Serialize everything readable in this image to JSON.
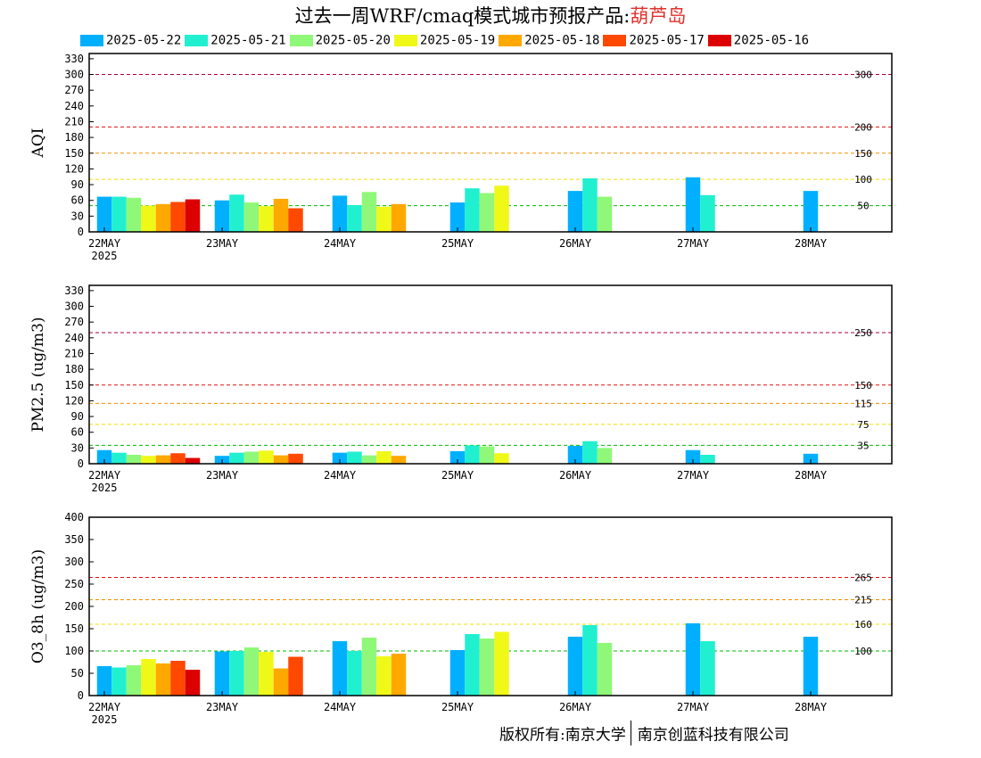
{
  "title": {
    "main": "过去一周WRF/cmaq模式城市预报产品:",
    "city": "葫芦岛"
  },
  "copyright": {
    "left": "版权所有:南京大学",
    "right": "南京创蓝科技有限公司"
  },
  "legend": [
    {
      "label": "2025-05-22",
      "color": "#00b0ff"
    },
    {
      "label": "2025-05-21",
      "color": "#20f0d0"
    },
    {
      "label": "2025-05-20",
      "color": "#90f878"
    },
    {
      "label": "2025-05-19",
      "color": "#f0f818"
    },
    {
      "label": "2025-05-18",
      "color": "#ffa800"
    },
    {
      "label": "2025-05-17",
      "color": "#ff4800"
    },
    {
      "label": "2025-05-16",
      "color": "#dc0000"
    }
  ],
  "chart_data": [
    {
      "type": "bar",
      "ylabel": "AQI",
      "ylim": [
        0,
        340
      ],
      "yticks": [
        0,
        30,
        60,
        90,
        120,
        150,
        180,
        210,
        240,
        270,
        300,
        330
      ],
      "x_tick_labels": [
        "22MAY",
        "23MAY",
        "24MAY",
        "25MAY",
        "26MAY",
        "27MAY",
        "28MAY"
      ],
      "x_year_label": "2025",
      "thresholds": [
        {
          "value": 300,
          "label": "300",
          "color": "#b0003a"
        },
        {
          "value": 200,
          "label": "200",
          "color": "#e01010"
        },
        {
          "value": 150,
          "label": "150",
          "color": "#f09000"
        },
        {
          "value": 100,
          "label": "100",
          "color": "#f0e000"
        },
        {
          "value": 50,
          "label": "50",
          "color": "#00bb00"
        }
      ],
      "series": [
        {
          "name": "2025-05-22",
          "values": [
            67,
            60,
            69,
            56,
            78,
            104,
            78
          ]
        },
        {
          "name": "2025-05-21",
          "values": [
            67,
            71,
            51,
            83,
            102,
            70,
            null
          ]
        },
        {
          "name": "2025-05-20",
          "values": [
            65,
            56,
            76,
            74,
            67,
            null,
            null
          ]
        },
        {
          "name": "2025-05-19",
          "values": [
            50,
            49,
            48,
            88,
            null,
            null,
            null
          ]
        },
        {
          "name": "2025-05-18",
          "values": [
            53,
            63,
            53,
            null,
            null,
            null,
            null
          ]
        },
        {
          "name": "2025-05-17",
          "values": [
            57,
            45,
            null,
            null,
            null,
            null,
            null
          ]
        },
        {
          "name": "2025-05-16",
          "values": [
            62,
            null,
            null,
            null,
            null,
            null,
            null
          ]
        }
      ]
    },
    {
      "type": "bar",
      "ylabel": "PM2.5 (ug/m3)",
      "ylim": [
        0,
        340
      ],
      "yticks": [
        0,
        30,
        60,
        90,
        120,
        150,
        180,
        210,
        240,
        270,
        300,
        330
      ],
      "x_tick_labels": [
        "22MAY",
        "23MAY",
        "24MAY",
        "25MAY",
        "26MAY",
        "27MAY",
        "28MAY"
      ],
      "x_year_label": "2025",
      "thresholds": [
        {
          "value": 250,
          "label": "250",
          "color": "#b0003a"
        },
        {
          "value": 150,
          "label": "150",
          "color": "#e01010"
        },
        {
          "value": 115,
          "label": "115",
          "color": "#f09000"
        },
        {
          "value": 75,
          "label": "75",
          "color": "#f0e000"
        },
        {
          "value": 35,
          "label": "35",
          "color": "#00bb00"
        }
      ],
      "series": [
        {
          "name": "2025-05-22",
          "values": [
            26,
            15,
            21,
            24,
            34,
            26,
            19
          ]
        },
        {
          "name": "2025-05-21",
          "values": [
            21,
            21,
            23,
            35,
            43,
            17,
            null
          ]
        },
        {
          "name": "2025-05-20",
          "values": [
            17,
            23,
            16,
            33,
            30,
            null,
            null
          ]
        },
        {
          "name": "2025-05-19",
          "values": [
            15,
            25,
            24,
            20,
            null,
            null,
            null
          ]
        },
        {
          "name": "2025-05-18",
          "values": [
            16,
            16,
            15,
            null,
            null,
            null,
            null
          ]
        },
        {
          "name": "2025-05-17",
          "values": [
            20,
            19,
            null,
            null,
            null,
            null,
            null
          ]
        },
        {
          "name": "2025-05-16",
          "values": [
            11,
            null,
            null,
            null,
            null,
            null,
            null
          ]
        }
      ]
    },
    {
      "type": "bar",
      "ylabel": "O3_8h (ug/m3)",
      "ylim": [
        0,
        400
      ],
      "yticks": [
        0,
        50,
        100,
        150,
        200,
        250,
        300,
        350,
        400
      ],
      "x_tick_labels": [
        "22MAY",
        "23MAY",
        "24MAY",
        "25MAY",
        "26MAY",
        "27MAY",
        "28MAY"
      ],
      "x_year_label": "2025",
      "thresholds": [
        {
          "value": 265,
          "label": "265",
          "color": "#e01010"
        },
        {
          "value": 215,
          "label": "215",
          "color": "#f09000"
        },
        {
          "value": 160,
          "label": "160",
          "color": "#f0e000"
        },
        {
          "value": 100,
          "label": "100",
          "color": "#00bb00"
        }
      ],
      "series": [
        {
          "name": "2025-05-22",
          "values": [
            66,
            99,
            122,
            102,
            132,
            162,
            132
          ]
        },
        {
          "name": "2025-05-21",
          "values": [
            63,
            100,
            100,
            138,
            158,
            122,
            null
          ]
        },
        {
          "name": "2025-05-20",
          "values": [
            68,
            108,
            130,
            128,
            118,
            null,
            null
          ]
        },
        {
          "name": "2025-05-19",
          "values": [
            82,
            98,
            88,
            143,
            null,
            null,
            null
          ]
        },
        {
          "name": "2025-05-18",
          "values": [
            72,
            61,
            94,
            null,
            null,
            null,
            null
          ]
        },
        {
          "name": "2025-05-17",
          "values": [
            78,
            87,
            null,
            null,
            null,
            null,
            null
          ]
        },
        {
          "name": "2025-05-16",
          "values": [
            58,
            null,
            null,
            null,
            null,
            null,
            null
          ]
        }
      ]
    }
  ]
}
